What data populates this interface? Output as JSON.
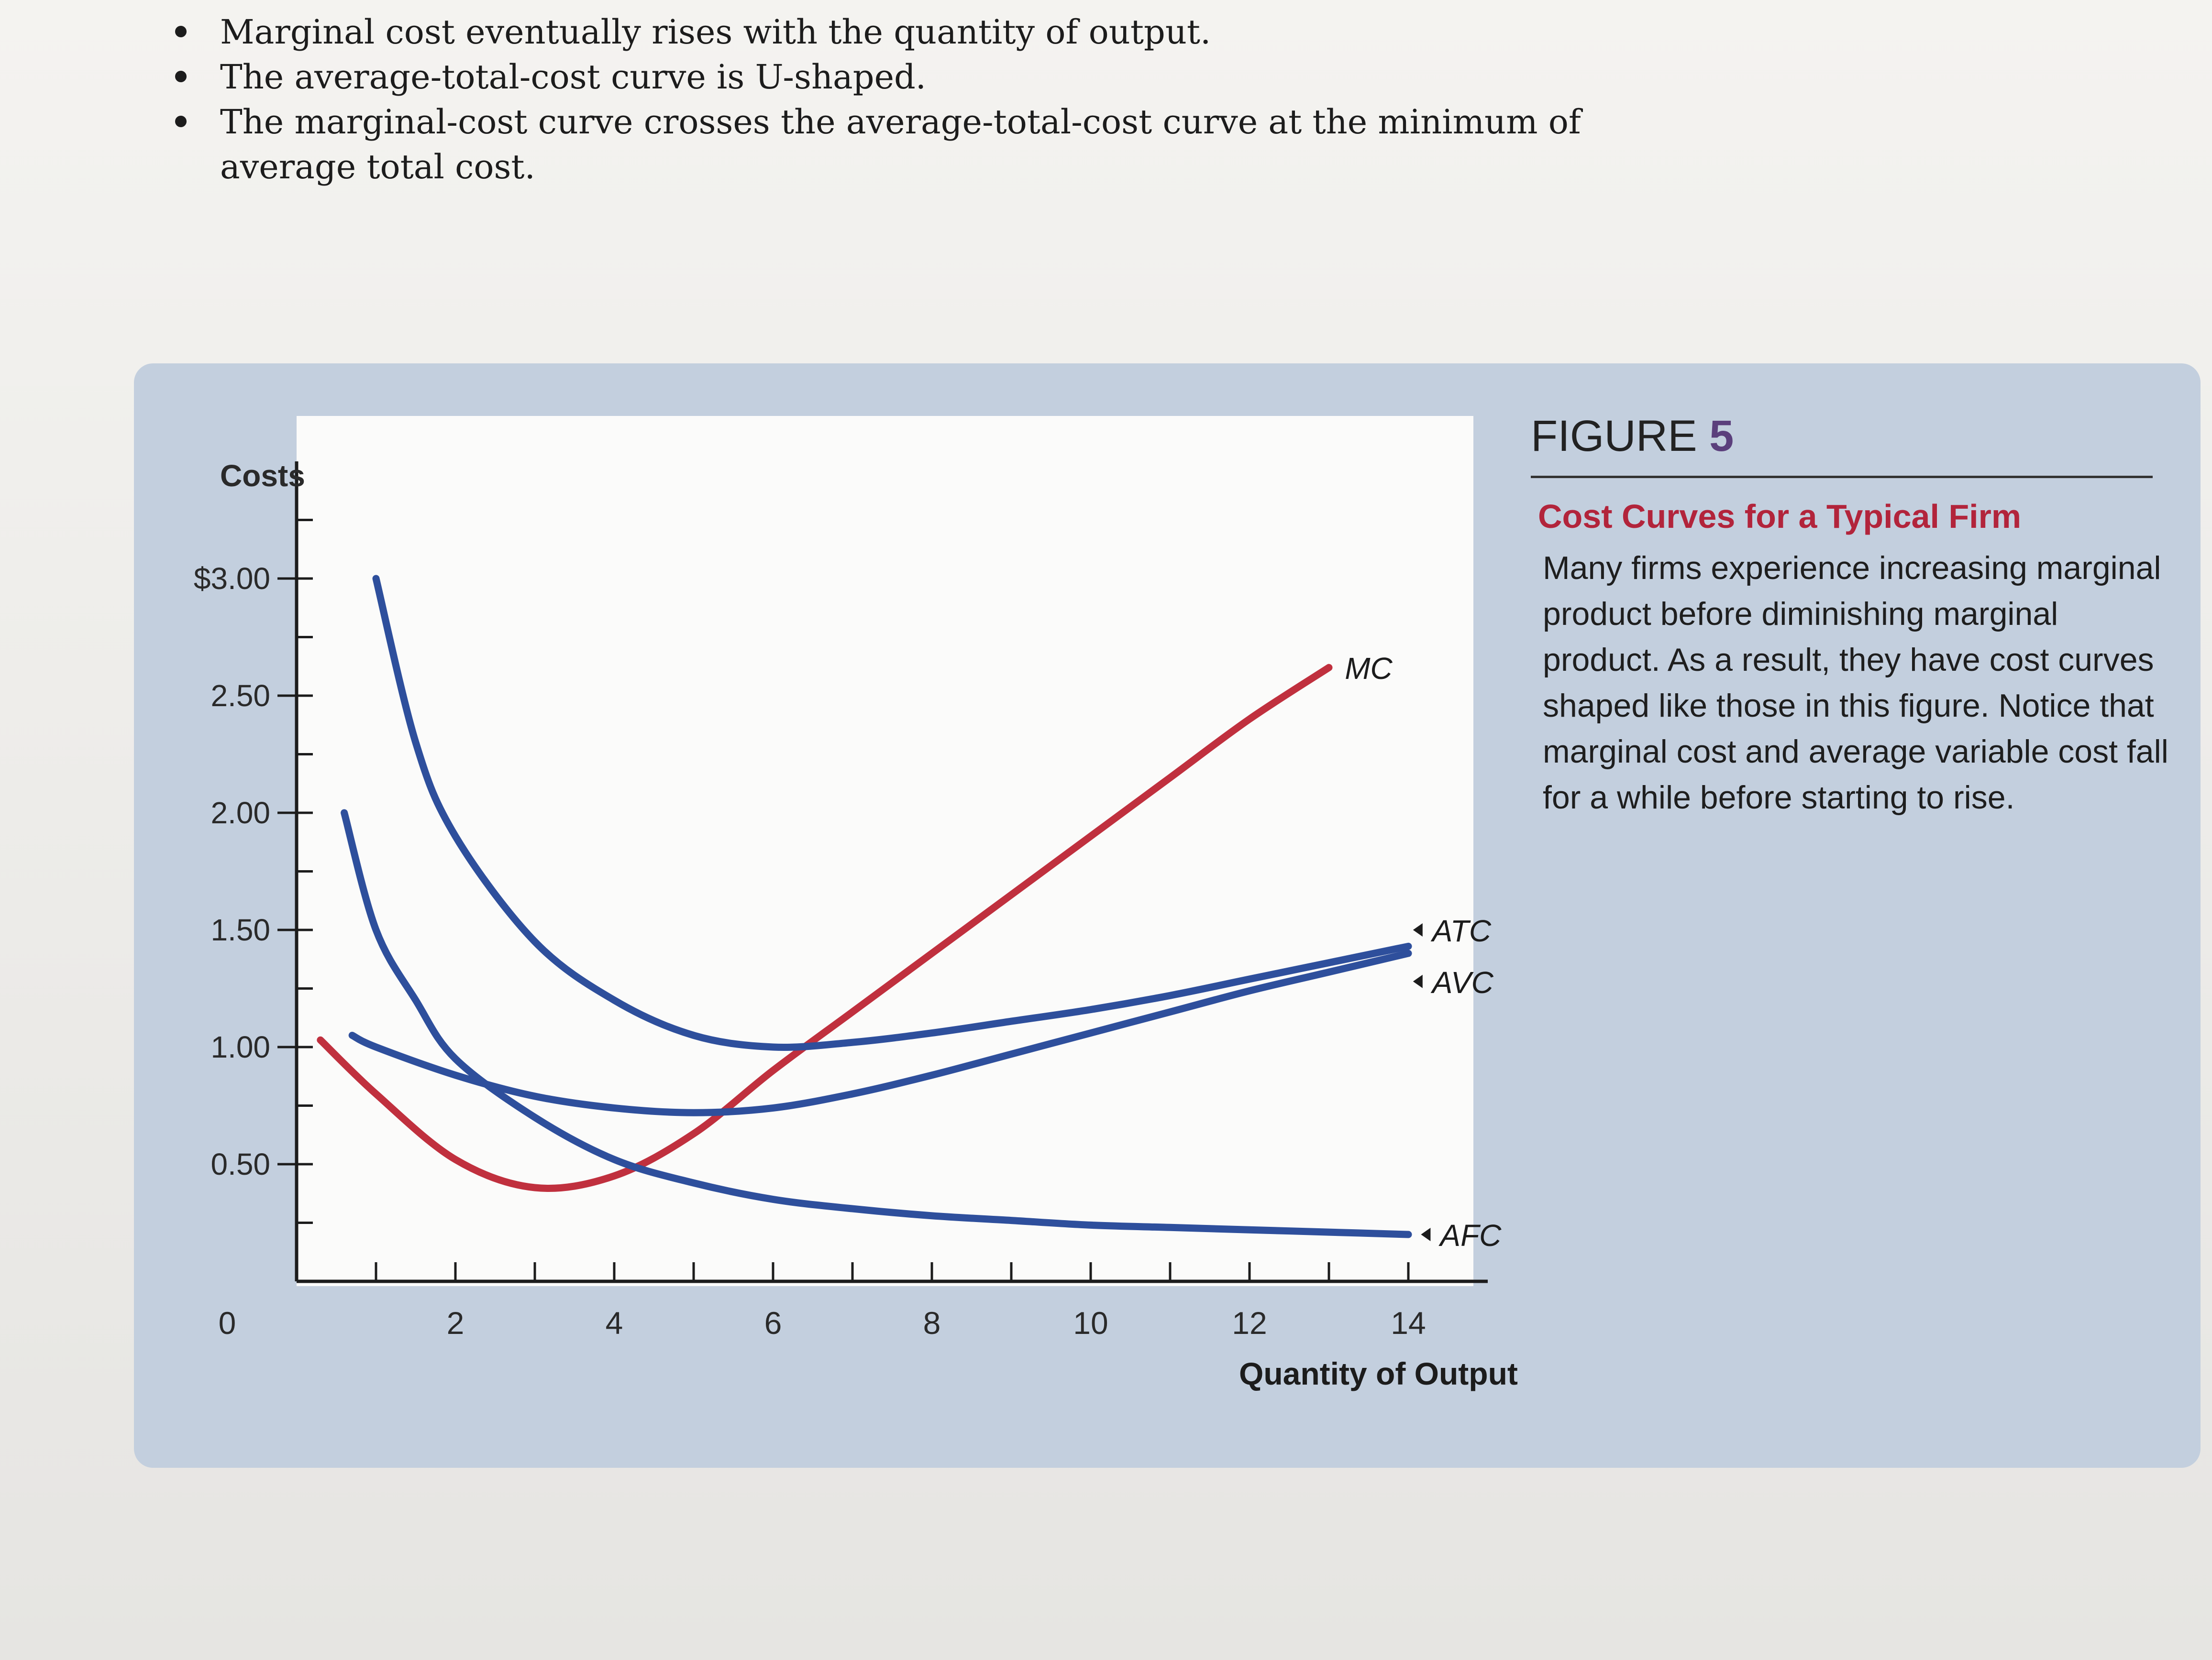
{
  "bullets": [
    "Marginal cost eventually rises with the quantity of output.",
    "The average-total-cost curve is U-shaped.",
    "The marginal-cost curve crosses the average-total-cost curve at the minimum of average total cost."
  ],
  "figure": {
    "label": "FIGURE",
    "number": "5",
    "subtitle": "Cost Curves for a Typical Firm",
    "caption": "Many firms experience increasing marginal product before diminishing marginal product. As a result, they have cost curves shaped like those in this figure. Notice that marginal cost and average variable cost fall for a while before starting to rise."
  },
  "colors": {
    "mc": "#c0303e",
    "blue": "#2e4f9c",
    "panel": "#c3cfde",
    "plot": "#fbfbfa"
  },
  "chart_data": {
    "type": "line",
    "title": "",
    "xlabel": "Quantity of Output",
    "ylabel": "Costs",
    "xlim": [
      0,
      15
    ],
    "ylim": [
      0,
      3.5
    ],
    "x_ticks": [
      0,
      2,
      4,
      6,
      8,
      10,
      12,
      14
    ],
    "x_tick_labels": [
      "0",
      "2",
      "4",
      "6",
      "8",
      "10",
      "12",
      "14"
    ],
    "y_ticks": [
      0.5,
      1.0,
      1.5,
      2.0,
      2.5,
      3.0
    ],
    "y_tick_labels": [
      "0.50",
      "1.00",
      "1.50",
      "2.00",
      "2.50",
      "$3.00"
    ],
    "grid": false,
    "series": [
      {
        "name": "MC",
        "color": "#c0303e",
        "points": [
          [
            0.3,
            1.03
          ],
          [
            1,
            0.8
          ],
          [
            2,
            0.52
          ],
          [
            3,
            0.4
          ],
          [
            4,
            0.45
          ],
          [
            5,
            0.63
          ],
          [
            6,
            0.9
          ],
          [
            7,
            1.15
          ],
          [
            8,
            1.4
          ],
          [
            9,
            1.65
          ],
          [
            10,
            1.9
          ],
          [
            11,
            2.15
          ],
          [
            12,
            2.4
          ],
          [
            13,
            2.62
          ]
        ]
      },
      {
        "name": "ATC",
        "color": "#2e4f9c",
        "points": [
          [
            1,
            3.0
          ],
          [
            1.5,
            2.3
          ],
          [
            2,
            1.9
          ],
          [
            3,
            1.45
          ],
          [
            4,
            1.2
          ],
          [
            5,
            1.05
          ],
          [
            6,
            1.0
          ],
          [
            7,
            1.02
          ],
          [
            8,
            1.06
          ],
          [
            9,
            1.11
          ],
          [
            10,
            1.16
          ],
          [
            11,
            1.22
          ],
          [
            12,
            1.29
          ],
          [
            13,
            1.36
          ],
          [
            14,
            1.43
          ]
        ]
      },
      {
        "name": "AVC",
        "color": "#2e4f9c",
        "points": [
          [
            0.7,
            1.05
          ],
          [
            1,
            1.0
          ],
          [
            2,
            0.88
          ],
          [
            3,
            0.79
          ],
          [
            4,
            0.74
          ],
          [
            5,
            0.72
          ],
          [
            6,
            0.74
          ],
          [
            7,
            0.8
          ],
          [
            8,
            0.88
          ],
          [
            9,
            0.97
          ],
          [
            10,
            1.06
          ],
          [
            11,
            1.15
          ],
          [
            12,
            1.24
          ],
          [
            13,
            1.32
          ],
          [
            14,
            1.4
          ]
        ]
      },
      {
        "name": "AFC",
        "color": "#2e4f9c",
        "points": [
          [
            0.6,
            2.0
          ],
          [
            1,
            1.5
          ],
          [
            1.5,
            1.2
          ],
          [
            2,
            0.95
          ],
          [
            3,
            0.7
          ],
          [
            4,
            0.52
          ],
          [
            5,
            0.42
          ],
          [
            6,
            0.35
          ],
          [
            7,
            0.31
          ],
          [
            8,
            0.28
          ],
          [
            9,
            0.26
          ],
          [
            10,
            0.24
          ],
          [
            11,
            0.23
          ],
          [
            12,
            0.22
          ],
          [
            13,
            0.21
          ],
          [
            14,
            0.2
          ]
        ]
      }
    ],
    "curve_labels": [
      {
        "name": "MC",
        "text": "MC",
        "x": 13.2,
        "y": 2.62
      },
      {
        "name": "ATC",
        "text": "ATC",
        "x": 14.3,
        "y": 1.5
      },
      {
        "name": "AVC",
        "text": "AVC",
        "x": 14.3,
        "y": 1.28
      },
      {
        "name": "AFC",
        "text": "AFC",
        "x": 14.4,
        "y": 0.2
      }
    ]
  }
}
